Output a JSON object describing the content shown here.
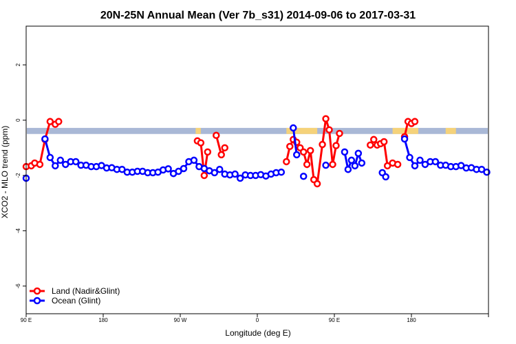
{
  "chart_data": {
    "type": "line",
    "title": "20N-25N Annual Mean (Ver 7b_s31)   2014-09-06 to 2017-03-31",
    "xlabel": "Longitude (deg E)",
    "ylabel": "XCO2 - MLO trend (ppm)",
    "xlim": [
      -90,
      180
    ],
    "ylim": [
      -7.0,
      3.4
    ],
    "xticks": [
      {
        "value": -90,
        "label": "90 E"
      },
      {
        "value": -45,
        "label": "180"
      },
      {
        "value": 0,
        "label": "90 W"
      },
      {
        "value": 45,
        "label": "0"
      },
      {
        "value": 90,
        "label": "90 E"
      },
      {
        "value": 135,
        "label": "180"
      }
    ],
    "yticks": [
      {
        "value": 2,
        "label": "2"
      },
      {
        "value": 0,
        "label": "0"
      },
      {
        "value": -2,
        "label": "-2"
      },
      {
        "value": -4,
        "label": "-4"
      },
      {
        "value": -6,
        "label": "-6"
      }
    ],
    "land_band": {
      "y_top": -0.28,
      "y_bottom": -0.5
    },
    "land_mask_ranges": [
      [
        9,
        12
      ],
      [
        62,
        80
      ],
      [
        124,
        139
      ],
      [
        155,
        161
      ]
    ],
    "series": [
      {
        "name": "Land (Nadir&Glint)",
        "color": "#ff0000",
        "segments": [
          {
            "x": [
              -90,
              -87,
              -85,
              -82,
              -79,
              -76,
              -73,
              -71
            ],
            "y": [
              -1.68,
              -1.65,
              -1.55,
              -1.6,
              -0.7,
              -0.05,
              -0.15,
              -0.05
            ]
          },
          {
            "x": [
              10,
              12,
              14,
              16
            ],
            "y": [
              -0.75,
              -0.82,
              -2.0,
              -1.15
            ]
          },
          {
            "x": [
              21,
              24,
              26
            ],
            "y": [
              -0.55,
              -1.25,
              -1.0
            ]
          },
          {
            "x": [
              62,
              64,
              66,
              68,
              70,
              72,
              74,
              76,
              78,
              80,
              83,
              85,
              87,
              89,
              91,
              93
            ],
            "y": [
              -1.5,
              -0.95,
              -0.7,
              -0.8,
              -1.0,
              -1.15,
              -1.6,
              -1.1,
              -2.15,
              -2.3,
              -0.88,
              0.05,
              -0.35,
              -1.6,
              -0.92,
              -0.48
            ]
          },
          {
            "x": [
              111,
              113,
              115,
              117,
              119,
              121,
              124,
              127
            ],
            "y": [
              -0.9,
              -0.7,
              -0.9,
              -0.85,
              -0.78,
              -1.65,
              -1.55,
              -1.6
            ]
          },
          {
            "x": [
              131,
              133,
              135,
              137
            ],
            "y": [
              -0.6,
              -0.05,
              -0.12,
              -0.05
            ]
          }
        ]
      },
      {
        "name": "Ocean (Glint)",
        "color": "#0000ff",
        "segments": [
          {
            "x": [
              -90
            ],
            "y": [
              -2.1
            ]
          },
          {
            "x": [
              -79,
              -76,
              -73,
              -70,
              -67,
              -64,
              -61,
              -58,
              -55,
              -52,
              -49,
              -46,
              -43,
              -40,
              -37,
              -34,
              -31,
              -28,
              -25,
              -22,
              -19,
              -16,
              -13,
              -10,
              -7,
              -4,
              -1,
              2,
              5,
              8,
              11,
              14,
              17,
              20,
              23,
              26,
              29,
              32,
              35,
              38,
              41,
              44,
              47,
              50,
              53,
              56,
              59
            ],
            "y": [
              -0.68,
              -1.35,
              -1.65,
              -1.45,
              -1.6,
              -1.5,
              -1.5,
              -1.63,
              -1.63,
              -1.68,
              -1.68,
              -1.64,
              -1.73,
              -1.72,
              -1.78,
              -1.78,
              -1.88,
              -1.88,
              -1.85,
              -1.85,
              -1.9,
              -1.9,
              -1.88,
              -1.8,
              -1.76,
              -1.93,
              -1.85,
              -1.75,
              -1.5,
              -1.45,
              -1.68,
              -1.75,
              -1.83,
              -1.9,
              -1.78,
              -1.95,
              -1.98,
              -1.95,
              -2.1,
              -1.98,
              -2.0,
              -2.0,
              -1.97,
              -2.02,
              -1.95,
              -1.9,
              -1.88
            ]
          },
          {
            "x": [
              66,
              68
            ],
            "y": [
              -0.28,
              -1.25
            ]
          },
          {
            "x": [
              72
            ],
            "y": [
              -2.03
            ]
          },
          {
            "x": [
              85
            ],
            "y": [
              -1.63
            ]
          },
          {
            "x": [
              96,
              98,
              100,
              102,
              104,
              106
            ],
            "y": [
              -1.15,
              -1.78,
              -1.45,
              -1.65,
              -1.2,
              -1.55
            ]
          },
          {
            "x": [
              118,
              120
            ],
            "y": [
              -1.9,
              -2.05
            ]
          },
          {
            "x": [
              131,
              134,
              137,
              140,
              143,
              146,
              149,
              152,
              155,
              158,
              161,
              164,
              167,
              170,
              173,
              176,
              179
            ],
            "y": [
              -0.68,
              -1.35,
              -1.65,
              -1.45,
              -1.6,
              -1.5,
              -1.5,
              -1.63,
              -1.63,
              -1.68,
              -1.68,
              -1.64,
              -1.73,
              -1.72,
              -1.78,
              -1.78,
              -1.88
            ]
          }
        ]
      }
    ],
    "legend": {
      "position": "bottom-left"
    }
  }
}
